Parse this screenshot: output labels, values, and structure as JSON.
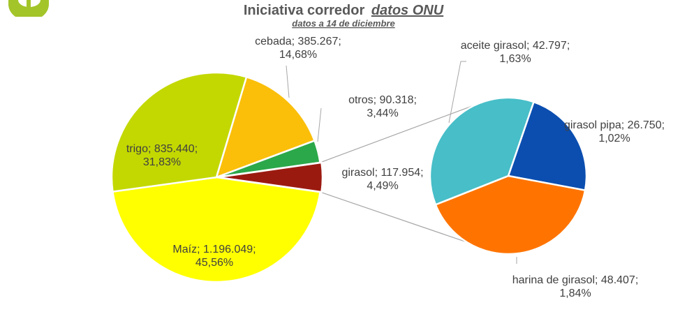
{
  "colors": {
    "logo": "#a3c52a",
    "title": "#595959",
    "label": "#404040",
    "connector": "#a6a6a6"
  },
  "chart_data": {
    "type": "bar-of-pie",
    "title": "Iniciativa corredor",
    "title_emphasis": "datos ONU",
    "subtitle": "datos a 14 de diciembre",
    "main_pie": [
      {
        "name": "Maíz",
        "value": 1196049,
        "label_value": "1.196.049",
        "percent": "45,56%",
        "color": "#ffff00"
      },
      {
        "name": "trigo",
        "value": 835440,
        "label_value": "835.440",
        "percent": "31,83%",
        "color": "#c3d800"
      },
      {
        "name": "cebada",
        "value": 385267,
        "label_value": "385.267",
        "percent": "14,68%",
        "color": "#fbbf0a"
      },
      {
        "name": "otros",
        "value": 90318,
        "label_value": "90.318",
        "percent": "3,44%",
        "color": "#2ba84a"
      },
      {
        "name": "girasol",
        "value": 117954,
        "label_value": "117.954",
        "percent": "4,49%",
        "color": "#9b1a10"
      }
    ],
    "secondary_pie": [
      {
        "name": "girasol pipa",
        "value": 26750,
        "label_value": "26.750",
        "percent": "1,02%",
        "color": "#0b4eb0"
      },
      {
        "name": "harina de girasol",
        "value": 48407,
        "label_value": "48.407",
        "percent": "1,84%",
        "color": "#ff7400"
      },
      {
        "name": "aceite girasol",
        "value": 42797,
        "label_value": "42.797",
        "percent": "1,63%",
        "color": "#47bec8"
      }
    ]
  }
}
